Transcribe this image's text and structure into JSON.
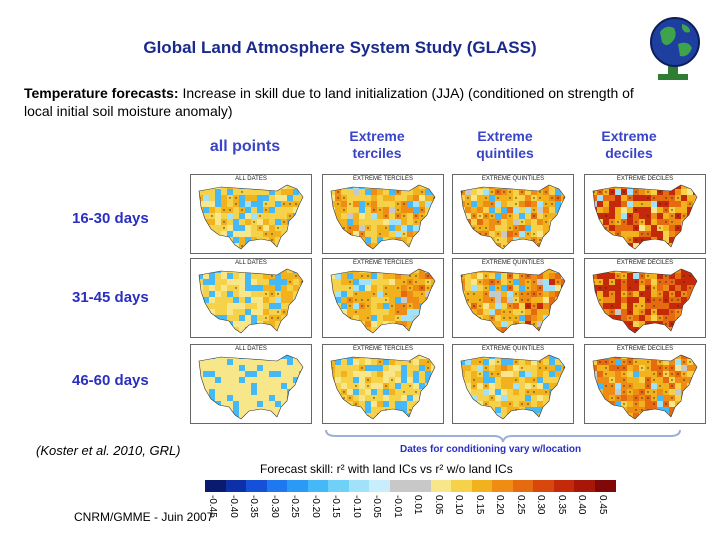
{
  "slide": {
    "title": "Global Land Atmosphere System Study (GLASS)",
    "subtitle_bold": "Temperature forecasts:",
    "subtitle_rest": " Increase in skill due to land initialization (JJA) (conditioned on strength of local initial soil moisture anomaly)",
    "citation": "(Koster et al. 2010, GRL)",
    "dates_note": "Dates for conditioning vary w/location",
    "legend_title": "Forecast skill: r² with land ICs vs r² w/o land ICs",
    "footer": "CNRM/GMME - Juin 2007"
  },
  "columns": [
    {
      "line1": "all points",
      "line2": ""
    },
    {
      "line1": "Extreme",
      "line2": "terciles"
    },
    {
      "line1": "Extreme",
      "line2": "quintiles"
    },
    {
      "line1": "Extreme",
      "line2": "deciles"
    }
  ],
  "rows": [
    {
      "label": "16-30 days"
    },
    {
      "label": "31-45 days"
    },
    {
      "label": "46-60 days"
    }
  ],
  "panel_labels": [
    "ALL DATES",
    "EXTREME TERCILES",
    "EXTREME QUINTILES",
    "EXTREME DECILES"
  ],
  "colorbar": {
    "ticks": [
      "-0.45",
      "-0.40",
      "-0.35",
      "-0.30",
      "-0.25",
      "-0.20",
      "-0.15",
      "-0.10",
      "-0.05",
      "-0.01",
      "0.01",
      "0.05",
      "0.10",
      "0.15",
      "0.20",
      "0.25",
      "0.30",
      "0.35",
      "0.40",
      "0.45"
    ],
    "colors": [
      "#0a1a6e",
      "#0d2fa8",
      "#1450d8",
      "#1e78f0",
      "#2b9af5",
      "#45b8f7",
      "#6fd0f8",
      "#9fe2fa",
      "#c9eefb",
      "#c8c8c8",
      "#c8c8c8",
      "#f7e68a",
      "#f5d24a",
      "#f2b21e",
      "#ee8c14",
      "#e66a10",
      "#d8480c",
      "#c42a0a",
      "#a8160a",
      "#800808"
    ]
  },
  "panel_intensity": [
    [
      0.35,
      0.45,
      0.55,
      0.8
    ],
    [
      0.25,
      0.4,
      0.55,
      0.9
    ],
    [
      0.15,
      0.3,
      0.4,
      0.6
    ]
  ]
}
